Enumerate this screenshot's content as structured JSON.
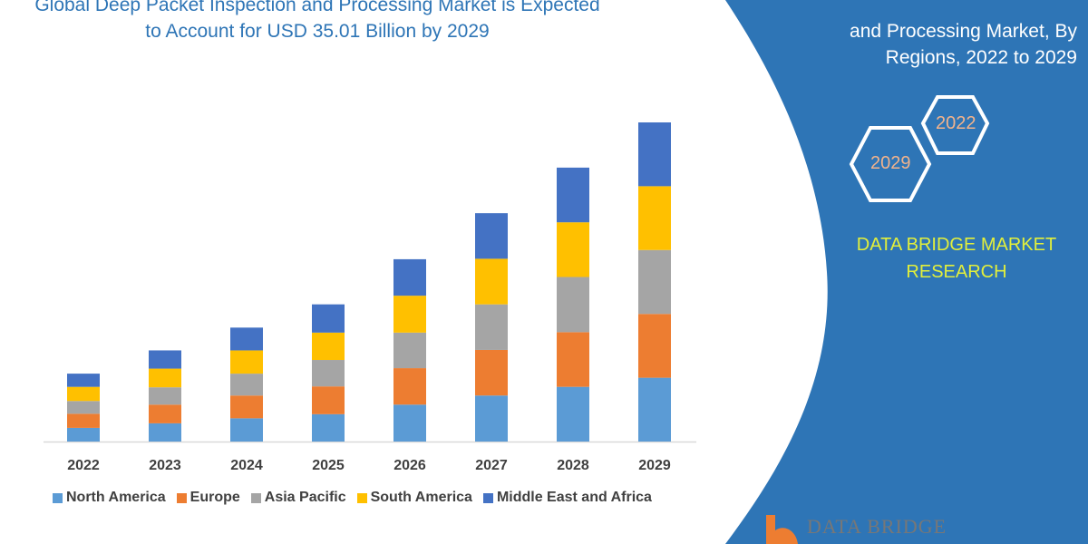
{
  "title": {
    "line1": "Global Deep Packet Inspection and Processing Market is Expected",
    "line2": "to Account for USD 35.01 Billion by 2029"
  },
  "side_panel": {
    "title_line1": "and Processing Market, By",
    "title_line2": "Regions, 2022 to 2029",
    "hex_years": [
      "2022",
      "2029"
    ],
    "brand_line1": "DATA BRIDGE MARKET",
    "brand_line2": "RESEARCH",
    "logo_text": "DATA BRIDGE",
    "panel_color": "#2e75b6",
    "brand_color": "#e2ef3b"
  },
  "chart_data": {
    "type": "bar",
    "stacked": true,
    "title": "",
    "xlabel": "",
    "ylabel": "",
    "ylim": [
      0,
      35.01
    ],
    "grid": false,
    "legend_position": "bottom",
    "categories": [
      "2022",
      "2023",
      "2024",
      "2025",
      "2026",
      "2027",
      "2028",
      "2029"
    ],
    "series": [
      {
        "name": "North America",
        "color": "#5b9bd5",
        "values": [
          1.5,
          2.0,
          2.55,
          3.0,
          4.05,
          5.05,
          6.0,
          7.0
        ]
      },
      {
        "name": "Europe",
        "color": "#ed7d31",
        "values": [
          1.55,
          2.05,
          2.5,
          3.05,
          4.0,
          5.0,
          6.0,
          7.0
        ]
      },
      {
        "name": "Asia Pacific",
        "color": "#a5a5a5",
        "values": [
          1.4,
          1.9,
          2.4,
          2.9,
          3.9,
          5.0,
          6.05,
          7.01
        ]
      },
      {
        "name": "South America",
        "color": "#ffc000",
        "values": [
          1.55,
          2.05,
          2.55,
          3.0,
          4.05,
          5.0,
          6.0,
          7.0
        ]
      },
      {
        "name": "Middle East and Africa",
        "color": "#4472c4",
        "values": [
          1.45,
          2.0,
          2.5,
          3.1,
          4.0,
          5.0,
          6.0,
          7.0
        ]
      }
    ]
  }
}
